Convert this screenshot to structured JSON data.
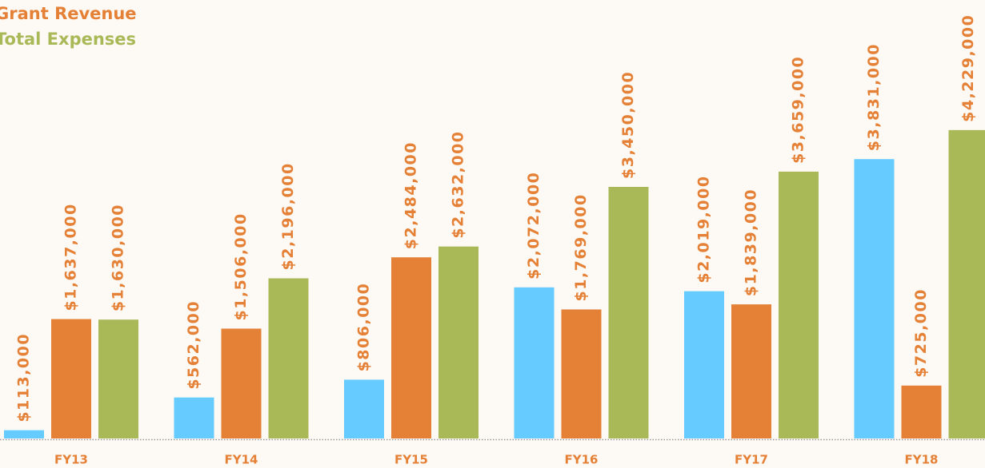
{
  "chart_data": {
    "type": "bar",
    "categories": [
      "FY13",
      "FY14",
      "FY15",
      "FY16",
      "FY17",
      "FY18"
    ],
    "series": [
      {
        "color": "#66ccff",
        "values": [
          113000,
          562000,
          806000,
          2072000,
          2019000,
          3831000
        ],
        "value_labels": [
          "$113,000",
          "$562,000",
          "$806,000",
          "$2,072,000",
          "$2,019,000",
          "$3,831,000"
        ]
      },
      {
        "name": "Grant Revenue",
        "color": "#e58136",
        "values": [
          1637000,
          1506000,
          2484000,
          1769000,
          1839000,
          725000
        ],
        "value_labels": [
          "$1,637,000",
          "$1,506,000",
          "$2,484,000",
          "$1,769,000",
          "$1,839,000",
          "$725,000"
        ]
      },
      {
        "name": "Total Expenses",
        "color": "#aab957",
        "values": [
          1630000,
          2196000,
          2632000,
          3450000,
          3659000,
          4229000
        ],
        "value_labels": [
          "$1,630,000",
          "$2,196,000",
          "$2,632,000",
          "$3,450,000",
          "$3,659,000",
          "$4,229,000"
        ]
      }
    ],
    "ylim": [
      0,
      4600000
    ]
  }
}
